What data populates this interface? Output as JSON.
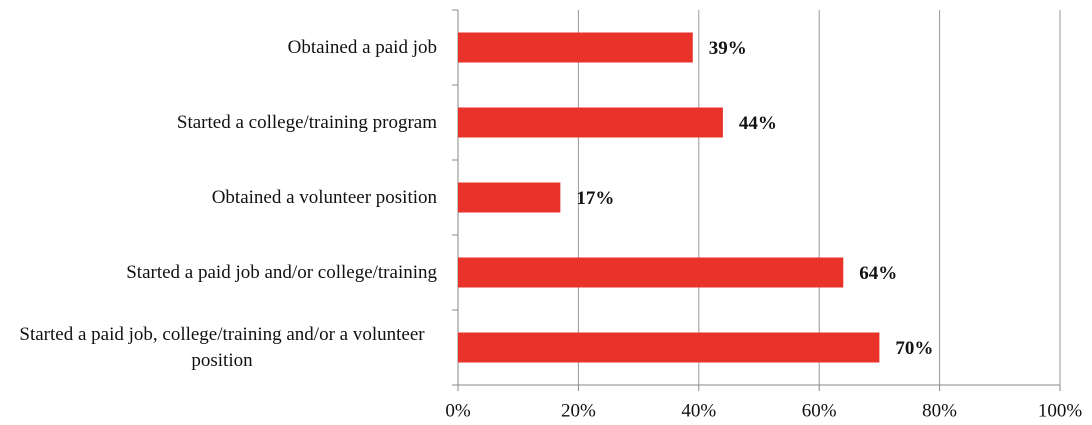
{
  "chart_data": {
    "type": "hbar",
    "categories": [
      "Obtained a paid job",
      "Started a college/training program",
      "Obtained a volunteer position",
      "Started a paid job and/or college/training",
      "Started a paid job, college/training and/or a volunteer position"
    ],
    "values": [
      39,
      44,
      17,
      64,
      70
    ],
    "value_labels": [
      "39%",
      "44%",
      "17%",
      "64%",
      "70%"
    ],
    "color": "#e8322a",
    "xlim": [
      0,
      100
    ],
    "xticks": [
      {
        "value": 0,
        "label": "0%"
      },
      {
        "value": 20,
        "label": "20%"
      },
      {
        "value": 40,
        "label": "40%"
      },
      {
        "value": 60,
        "label": "60%"
      },
      {
        "value": 80,
        "label": "80%"
      },
      {
        "value": 100,
        "label": "100%"
      }
    ],
    "grid": true
  }
}
